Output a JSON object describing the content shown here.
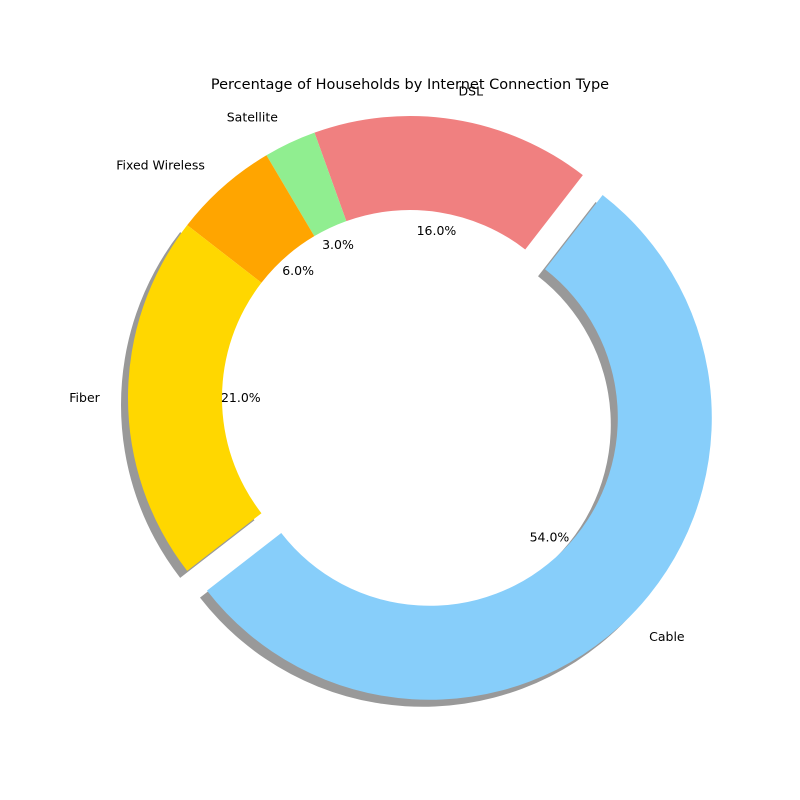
{
  "chart_data": {
    "type": "pie",
    "title": "Percentage of Households by Internet Connection Type",
    "categories": [
      "Cable",
      "DSL",
      "Satellite",
      "Fixed Wireless",
      "Fiber"
    ],
    "values": [
      54.0,
      16.0,
      3.0,
      6.0,
      21.0
    ],
    "value_labels": [
      "54.0%",
      "16.0%",
      "3.0%",
      "6.0%",
      "21.0%"
    ],
    "colors": [
      "#87CEFA",
      "#F08080",
      "#90EE90",
      "#FFA500",
      "#FFD700"
    ],
    "exploded": [
      true,
      false,
      false,
      false,
      false
    ],
    "shadow": true,
    "donut": true
  }
}
